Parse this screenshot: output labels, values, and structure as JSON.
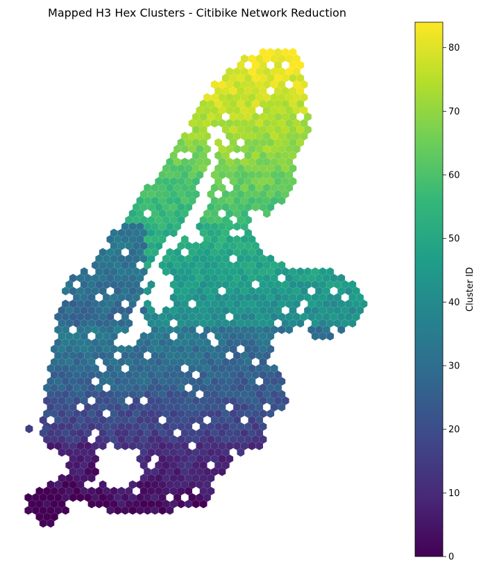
{
  "chart_data": {
    "type": "heatmap",
    "title": "Mapped H3 Hex Clusters - Citibike Network Reduction",
    "colorbar": {
      "label": "Cluster ID",
      "range": [
        0,
        84
      ],
      "ticks": [
        0,
        10,
        20,
        30,
        40,
        50,
        60,
        70,
        80
      ],
      "tick_labels": [
        "0",
        "10",
        "20",
        "30",
        "40",
        "50",
        "60",
        "70",
        "80"
      ],
      "colormap": "viridis",
      "colormap_stops": [
        "#440154",
        "#482878",
        "#3e4989",
        "#31688e",
        "#26828e",
        "#1f9e89",
        "#35b779",
        "#6ece58",
        "#b5de2b",
        "#fde725"
      ]
    },
    "axes": {
      "visible": false
    },
    "regions": [
      {
        "area": "north",
        "cluster_range": [
          70,
          84
        ],
        "note": "northernmost tip highest IDs"
      },
      {
        "area": "upper-middle",
        "cluster_range": [
          55,
          70
        ]
      },
      {
        "area": "central-east",
        "cluster_range": [
          40,
          60
        ]
      },
      {
        "area": "west-middle",
        "cluster_range": [
          25,
          40
        ]
      },
      {
        "area": "south-middle",
        "cluster_range": [
          10,
          30
        ]
      },
      {
        "area": "south",
        "cluster_range": [
          0,
          12
        ]
      }
    ]
  }
}
